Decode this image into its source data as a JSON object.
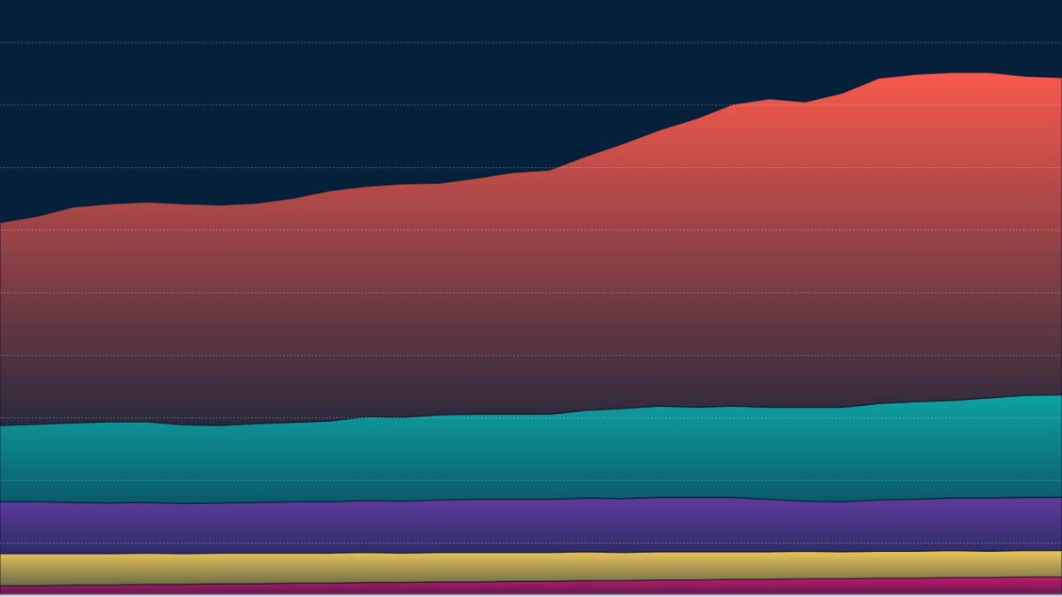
{
  "chart_data": {
    "type": "area",
    "stacked": true,
    "grid": true,
    "categories": [
      null,
      null,
      null,
      null,
      null,
      null,
      null,
      null,
      null,
      null,
      null,
      null,
      null,
      null,
      null,
      null,
      null,
      null,
      null,
      null,
      null,
      null,
      null,
      null,
      null,
      null,
      null,
      null,
      null,
      null
    ],
    "ylim": [
      0,
      95
    ],
    "yticks": [
      8.2,
      18.2,
      28.2,
      38.2,
      48.2,
      58.2,
      68.2,
      78.2,
      88.2
    ],
    "series": [
      {
        "color": "#c8186c",
        "values": [
          1.4,
          1.4,
          1.5,
          1.5,
          1.6,
          1.6,
          1.7,
          1.7,
          1.8,
          1.8,
          1.9,
          1.9,
          2.0,
          2.0,
          2.1,
          2.1,
          2.2,
          2.2,
          2.3,
          2.3,
          2.4,
          2.4,
          2.5,
          2.5,
          2.6,
          2.6,
          2.7,
          2.7,
          2.8,
          2.8
        ]
      },
      {
        "color": "#ecc55a",
        "values": [
          5.1,
          5.1,
          5.0,
          5.0,
          5.0,
          4.9,
          4.9,
          4.9,
          4.8,
          4.8,
          4.8,
          4.7,
          4.7,
          4.7,
          4.6,
          4.6,
          4.6,
          4.5,
          4.5,
          4.5,
          4.4,
          4.4,
          4.4,
          4.3,
          4.3,
          4.3,
          4.3,
          4.2,
          4.2,
          4.2
        ]
      },
      {
        "color": "#5f3b9c",
        "values": [
          8.3,
          8.3,
          8.2,
          8.1,
          8.1,
          8.0,
          8.0,
          8.1,
          8.2,
          8.2,
          8.3,
          8.3,
          8.4,
          8.5,
          8.5,
          8.5,
          8.6,
          8.6,
          8.7,
          8.7,
          8.7,
          8.4,
          8.0,
          8.0,
          8.2,
          8.3,
          8.4,
          8.5,
          8.5,
          8.5
        ]
      },
      {
        "color": "#0fa2a3",
        "values": [
          12.2,
          12.4,
          12.7,
          13.0,
          12.9,
          12.6,
          12.4,
          12.6,
          12.7,
          12.9,
          13.4,
          13.4,
          13.6,
          13.6,
          13.6,
          13.6,
          14.0,
          14.4,
          14.6,
          14.4,
          14.6,
          14.7,
          15.0,
          15.1,
          15.4,
          15.6,
          15.6,
          16.0,
          16.3,
          16.4
        ]
      },
      {
        "color": "#f85a4d",
        "values": [
          32.4,
          33.2,
          34.5,
          34.8,
          35.1,
          35.3,
          35.2,
          35.2,
          35.8,
          36.8,
          36.8,
          37.3,
          37.0,
          37.7,
          38.6,
          39.0,
          40.6,
          42.3,
          44.1,
          46.1,
          48.2,
          49.3,
          48.8,
          50.2,
          52.0,
          52.3,
          52.4,
          52.0,
          51.0,
          50.7
        ]
      }
    ]
  }
}
